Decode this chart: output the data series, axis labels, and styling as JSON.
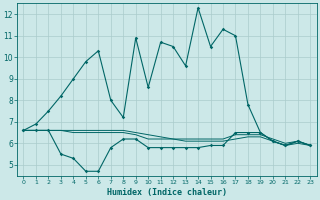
{
  "xlabel": "Humidex (Indice chaleur)",
  "background_color": "#cce8e8",
  "grid_color": "#aacccc",
  "line_color": "#006666",
  "xlim": [
    -0.5,
    23.5
  ],
  "ylim": [
    4.5,
    12.5
  ],
  "xticks": [
    0,
    1,
    2,
    3,
    4,
    5,
    6,
    7,
    8,
    9,
    10,
    11,
    12,
    13,
    14,
    15,
    16,
    17,
    18,
    19,
    20,
    21,
    22,
    23
  ],
  "yticks": [
    5,
    6,
    7,
    8,
    9,
    10,
    11,
    12
  ],
  "series1_x": [
    0,
    1,
    2,
    3,
    4,
    5,
    6,
    7,
    8,
    9,
    10,
    11,
    12,
    13,
    14,
    15,
    16,
    17,
    18,
    19,
    20,
    21,
    22,
    23
  ],
  "series1_y": [
    6.6,
    6.9,
    7.5,
    8.2,
    9.0,
    9.8,
    10.3,
    8.0,
    7.2,
    10.9,
    8.6,
    10.7,
    10.5,
    9.6,
    12.3,
    10.5,
    11.3,
    11.0,
    7.8,
    6.5,
    6.1,
    5.9,
    6.1,
    5.9
  ],
  "series2_x": [
    0,
    1,
    2,
    3,
    4,
    5,
    6,
    7,
    8,
    9,
    10,
    11,
    12,
    13,
    14,
    15,
    16,
    17,
    18,
    19,
    20,
    21,
    22,
    23
  ],
  "series2_y": [
    6.6,
    6.6,
    6.6,
    5.5,
    5.3,
    4.7,
    4.7,
    5.8,
    6.2,
    6.2,
    5.8,
    5.8,
    5.8,
    5.8,
    5.8,
    5.9,
    5.9,
    6.5,
    6.5,
    6.5,
    6.1,
    5.9,
    6.1,
    5.9
  ],
  "series3_x": [
    0,
    1,
    2,
    3,
    4,
    5,
    6,
    7,
    8,
    9,
    10,
    11,
    12,
    13,
    14,
    15,
    16,
    17,
    18,
    19,
    20,
    21,
    22,
    23
  ],
  "series3_y": [
    6.6,
    6.6,
    6.6,
    6.6,
    6.6,
    6.6,
    6.6,
    6.6,
    6.6,
    6.5,
    6.4,
    6.3,
    6.2,
    6.2,
    6.2,
    6.2,
    6.2,
    6.4,
    6.4,
    6.4,
    6.2,
    6.0,
    6.1,
    5.9
  ],
  "series4_x": [
    0,
    1,
    2,
    3,
    4,
    5,
    6,
    7,
    8,
    9,
    10,
    11,
    12,
    13,
    14,
    15,
    16,
    17,
    18,
    19,
    20,
    21,
    22,
    23
  ],
  "series4_y": [
    6.6,
    6.6,
    6.6,
    6.6,
    6.5,
    6.5,
    6.5,
    6.5,
    6.5,
    6.4,
    6.2,
    6.2,
    6.2,
    6.1,
    6.1,
    6.1,
    6.1,
    6.2,
    6.3,
    6.3,
    6.1,
    5.9,
    6.0,
    5.9
  ]
}
